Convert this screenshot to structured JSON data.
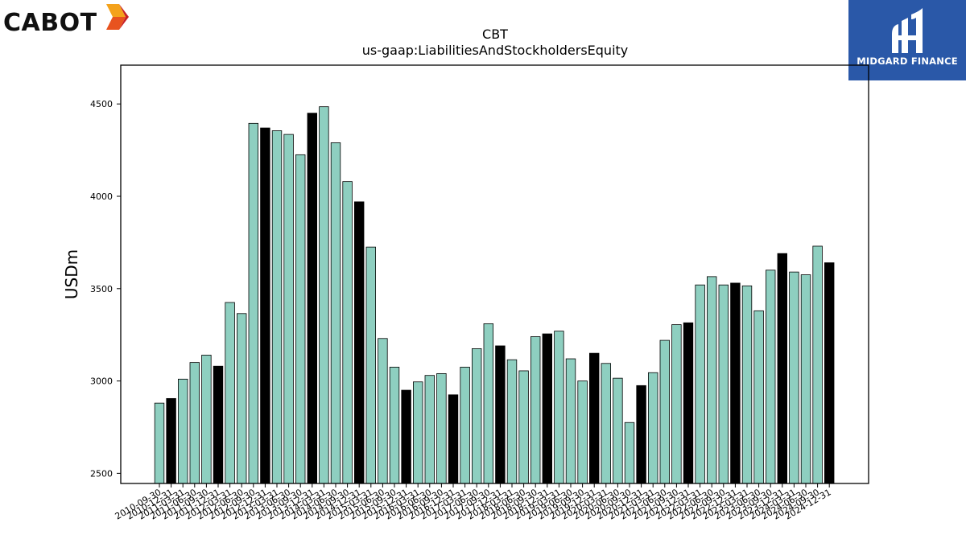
{
  "logos": {
    "left": {
      "text": "CABOT",
      "mark_colors": [
        "#f4a21b",
        "#e8531f",
        "#c61f26"
      ]
    },
    "right": {
      "text": "MIDGARD FINANCE",
      "background": "#2a58a8"
    }
  },
  "chart_data": {
    "type": "bar",
    "title": "CBT",
    "subtitle": "us-gaap:LiabilitiesAndStockholdersEquity",
    "ylabel": "USDm",
    "xlabel": "",
    "ylim": [
      2445,
      4710
    ],
    "yticks": [
      2500,
      3000,
      3500,
      4000,
      4500
    ],
    "grid": false,
    "colors": {
      "quarter": "#8ecfc0",
      "fiscal_year_end": "#000000",
      "edge": "#000000"
    },
    "categories": [
      "2010-09-30",
      "2010-12-31",
      "2011-03-31",
      "2011-06-30",
      "2011-09-30",
      "2011-12-31",
      "2012-03-31",
      "2012-06-30",
      "2012-09-30",
      "2012-12-31",
      "2013-03-31",
      "2013-06-30",
      "2013-09-30",
      "2013-12-31",
      "2014-03-31",
      "2014-06-30",
      "2014-09-30",
      "2014-12-31",
      "2015-03-31",
      "2015-06-30",
      "2015-09-30",
      "2015-12-31",
      "2016-03-31",
      "2016-06-30",
      "2016-09-30",
      "2016-12-31",
      "2017-03-31",
      "2017-06-30",
      "2017-09-30",
      "2017-12-31",
      "2018-03-31",
      "2018-06-30",
      "2018-09-30",
      "2018-12-31",
      "2019-03-31",
      "2019-06-30",
      "2019-09-30",
      "2019-12-31",
      "2020-03-31",
      "2020-06-30",
      "2020-09-30",
      "2020-12-31",
      "2021-03-31",
      "2021-06-30",
      "2021-09-30",
      "2021-12-31",
      "2022-03-31",
      "2022-06-30",
      "2022-09-30",
      "2022-12-31",
      "2023-03-31",
      "2023-06-30",
      "2023-09-30",
      "2023-12-31",
      "2024-03-31",
      "2024-06-30",
      "2024-09-30",
      "2024-12-31"
    ],
    "values": [
      2880,
      2905,
      3010,
      3100,
      3140,
      3080,
      3425,
      3365,
      4395,
      4370,
      4355,
      4335,
      4225,
      4450,
      4485,
      4290,
      4080,
      3970,
      3725,
      3230,
      3075,
      2950,
      2995,
      3030,
      3040,
      2925,
      3075,
      3175,
      3310,
      3190,
      3115,
      3055,
      3240,
      3255,
      3270,
      3120,
      3000,
      3150,
      3095,
      3015,
      2775,
      2975,
      3045,
      3220,
      3305,
      3315,
      3520,
      3565,
      3520,
      3530,
      3515,
      3380,
      3600,
      3690,
      3590,
      3575,
      3730,
      3640
    ],
    "highlight": [
      false,
      true,
      false,
      false,
      false,
      true,
      false,
      false,
      false,
      true,
      false,
      false,
      false,
      true,
      false,
      false,
      false,
      true,
      false,
      false,
      false,
      true,
      false,
      false,
      false,
      true,
      false,
      false,
      false,
      true,
      false,
      false,
      false,
      true,
      false,
      false,
      false,
      true,
      false,
      false,
      false,
      true,
      false,
      false,
      false,
      true,
      false,
      false,
      false,
      true,
      false,
      false,
      false,
      true,
      false,
      false,
      false,
      true
    ]
  }
}
